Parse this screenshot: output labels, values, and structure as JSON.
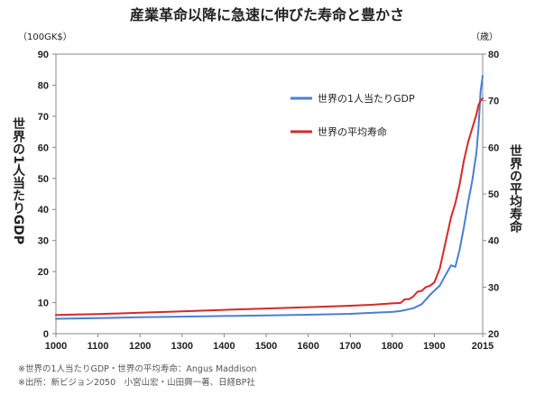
{
  "chart_data": {
    "type": "line",
    "title": "産業革命以降に急速に伸びた寿命と豊かさ",
    "left_unit": "（100GK$）",
    "right_unit": "（歳）",
    "ylabel_left": "世界の1人当たりGDP",
    "ylabel_right": "世界の平均寿命",
    "xlim": [
      1000,
      2015
    ],
    "x_ticks": [
      1000,
      1100,
      1200,
      1300,
      1400,
      1500,
      1600,
      1700,
      1800,
      1900,
      2015
    ],
    "ylim_left": [
      0,
      90
    ],
    "y_ticks_left": [
      0,
      10,
      20,
      30,
      40,
      50,
      60,
      70,
      80,
      90
    ],
    "ylim_right": [
      20,
      80
    ],
    "y_ticks_right": [
      20,
      30,
      40,
      50,
      60,
      70,
      80
    ],
    "grid": false,
    "legend_position": "upper-right",
    "series": [
      {
        "name": "世界の1人当たりGDP",
        "axis": "left",
        "color": "#4a7fd0",
        "points": [
          [
            1000,
            4.8
          ],
          [
            1100,
            5.0
          ],
          [
            1200,
            5.3
          ],
          [
            1300,
            5.5
          ],
          [
            1400,
            5.7
          ],
          [
            1500,
            5.9
          ],
          [
            1600,
            6.1
          ],
          [
            1700,
            6.4
          ],
          [
            1750,
            6.7
          ],
          [
            1800,
            7.0
          ],
          [
            1820,
            7.3
          ],
          [
            1850,
            8.2
          ],
          [
            1870,
            9.5
          ],
          [
            1890,
            12.5
          ],
          [
            1913,
            15.5
          ],
          [
            1925,
            18.5
          ],
          [
            1940,
            22.0
          ],
          [
            1950,
            21.5
          ],
          [
            1960,
            27.0
          ],
          [
            1970,
            34.0
          ],
          [
            1980,
            42.0
          ],
          [
            1990,
            49.0
          ],
          [
            2000,
            58.0
          ],
          [
            2005,
            66.0
          ],
          [
            2010,
            78.0
          ],
          [
            2015,
            83.0
          ]
        ]
      },
      {
        "name": "世界の平均寿命",
        "axis": "right",
        "color": "#d5282b",
        "points": [
          [
            1000,
            24.0
          ],
          [
            1100,
            24.2
          ],
          [
            1200,
            24.5
          ],
          [
            1300,
            24.8
          ],
          [
            1400,
            25.1
          ],
          [
            1500,
            25.4
          ],
          [
            1600,
            25.7
          ],
          [
            1700,
            26.0
          ],
          [
            1750,
            26.2
          ],
          [
            1800,
            26.5
          ],
          [
            1820,
            26.6
          ],
          [
            1830,
            27.4
          ],
          [
            1840,
            27.4
          ],
          [
            1850,
            28.0
          ],
          [
            1860,
            29.0
          ],
          [
            1870,
            29.2
          ],
          [
            1880,
            30.0
          ],
          [
            1890,
            30.3
          ],
          [
            1900,
            31.0
          ],
          [
            1913,
            34.0
          ],
          [
            1930,
            41.0
          ],
          [
            1940,
            45.0
          ],
          [
            1950,
            48.0
          ],
          [
            1960,
            52.0
          ],
          [
            1970,
            57.0
          ],
          [
            1980,
            61.0
          ],
          [
            1990,
            64.0
          ],
          [
            2000,
            67.0
          ],
          [
            2005,
            69.0
          ],
          [
            2010,
            70.0
          ],
          [
            2015,
            70.5
          ]
        ]
      }
    ]
  },
  "notes": [
    "※世界の1人当たりGDP・世界の平均寿命：Angus Maddison",
    "※出所：新ビジョン2050　小宮山宏・山田興一著、日経BP社"
  ]
}
